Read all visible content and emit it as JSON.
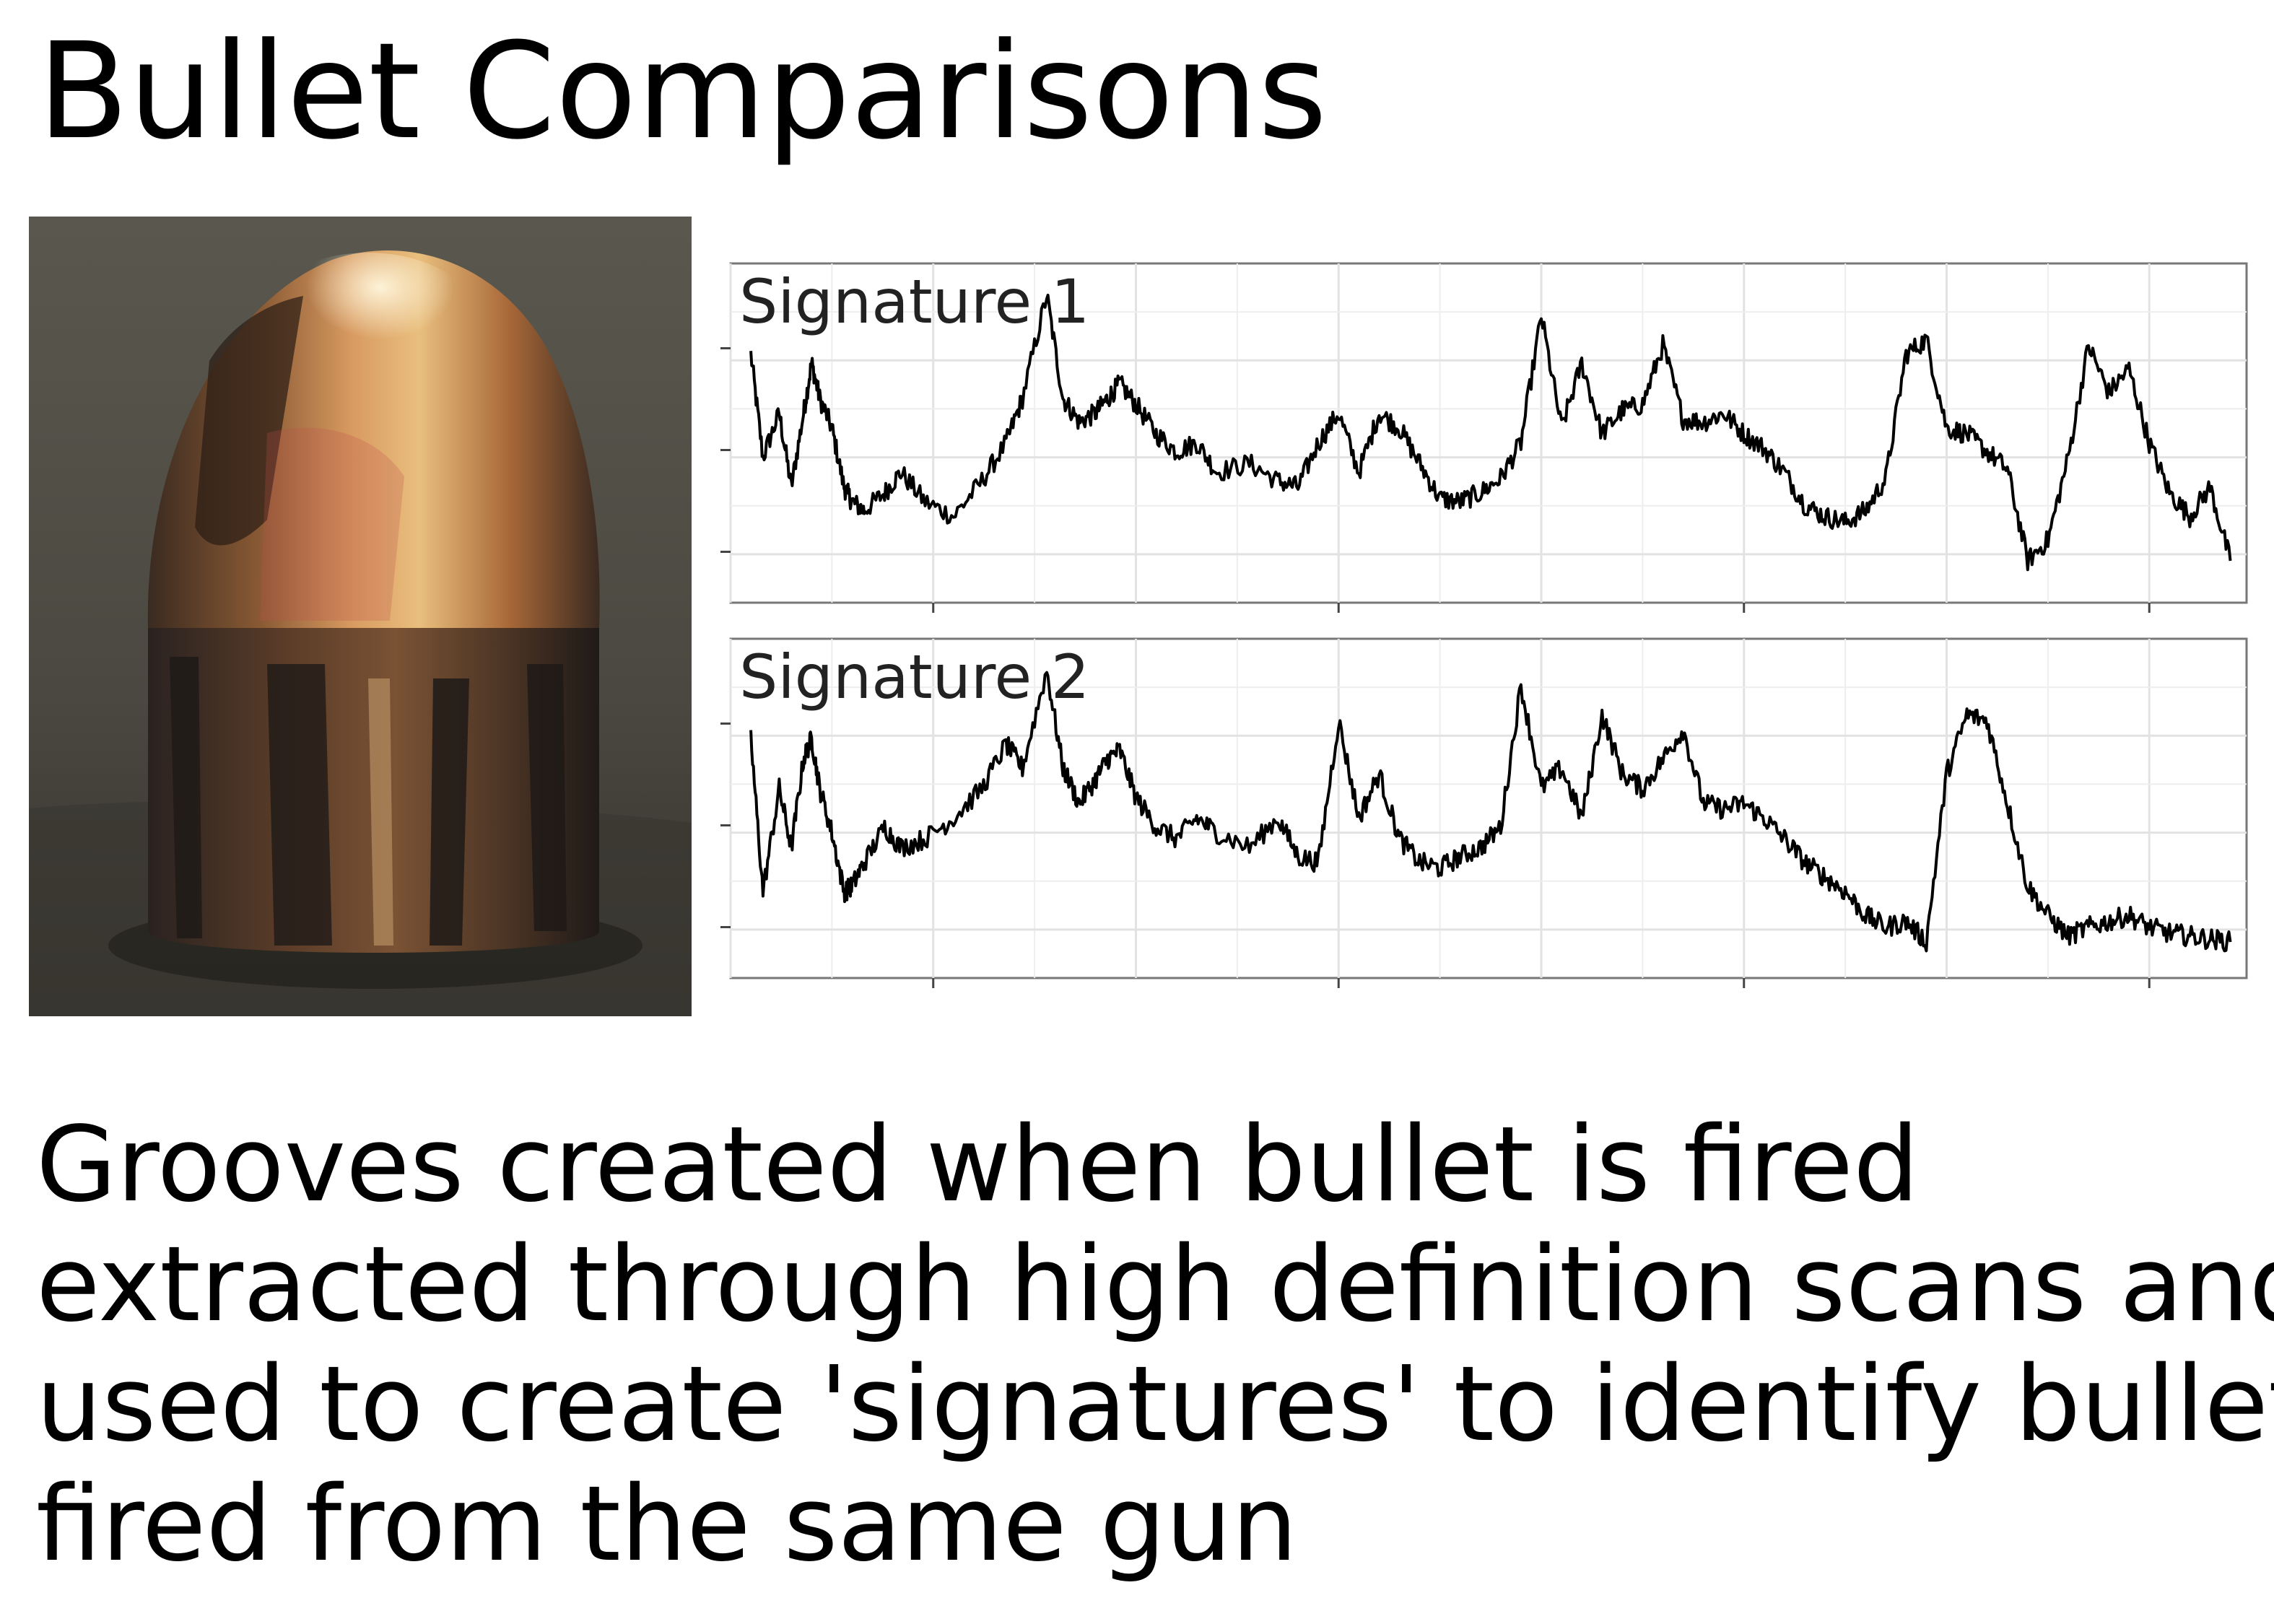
{
  "slide": {
    "title": "Bullet Comparisons"
  },
  "photo": {
    "subject": "copper-jacketed bullet with rifling grooves",
    "colors": {
      "background": "#4a4840",
      "copper_light": "#e9bf7e",
      "copper_mid": "#a86838",
      "copper_dark": "#3a2a20",
      "groove_dark": "#1f1a18"
    }
  },
  "chart_data": {
    "type": "line",
    "x_range": [
      0,
      3.74
    ],
    "y_range": [
      0,
      1
    ],
    "x_ticks": [
      0.5,
      1.5,
      2.5,
      3.5
    ],
    "tick_labels_shown": false,
    "grid": true,
    "line_color": "#000000",
    "panels": [
      {
        "label": "Signature 1",
        "series": [
          {
            "x": [
              0.05,
              0.08,
              0.12,
              0.15,
              0.18,
              0.2,
              0.22,
              0.25,
              0.28,
              0.3,
              0.33,
              0.38,
              0.42,
              0.48,
              0.55,
              0.62,
              0.68,
              0.72,
              0.78,
              0.82,
              0.86,
              0.9,
              0.93,
              0.96,
              1.0,
              1.05,
              1.1,
              1.15,
              1.2,
              1.28,
              1.35,
              1.4,
              1.45,
              1.5,
              1.55,
              1.6,
              1.65,
              1.7,
              1.75,
              1.8,
              1.85,
              1.9,
              1.95,
              2.0,
              2.05,
              2.1,
              2.15,
              2.2,
              2.25,
              2.3,
              2.35,
              2.4,
              2.45,
              2.5,
              2.55,
              2.6,
              2.65,
              2.7,
              2.75,
              2.8,
              2.85,
              2.9,
              2.95,
              3.0,
              3.05,
              3.1,
              3.15,
              3.2,
              3.25,
              3.3,
              3.35,
              3.4,
              3.45,
              3.5,
              3.55,
              3.6,
              3.65,
              3.7
            ],
            "y": [
              0.75,
              0.4,
              0.55,
              0.3,
              0.55,
              0.72,
              0.6,
              0.5,
              0.3,
              0.25,
              0.22,
              0.28,
              0.35,
              0.25,
              0.2,
              0.32,
              0.45,
              0.6,
              0.95,
              0.6,
              0.52,
              0.55,
              0.6,
              0.65,
              0.58,
              0.48,
              0.42,
              0.45,
              0.35,
              0.38,
              0.32,
              0.3,
              0.45,
              0.55,
              0.35,
              0.55,
              0.5,
              0.38,
              0.26,
              0.25,
              0.28,
              0.33,
              0.45,
              0.88,
              0.5,
              0.72,
              0.48,
              0.56,
              0.58,
              0.78,
              0.53,
              0.52,
              0.55,
              0.48,
              0.43,
              0.35,
              0.24,
              0.2,
              0.18,
              0.22,
              0.33,
              0.75,
              0.8,
              0.5,
              0.48,
              0.42,
              0.36,
              0.05,
              0.12,
              0.4,
              0.78,
              0.62,
              0.7,
              0.45,
              0.28,
              0.2,
              0.3,
              0.05
            ]
          }
        ]
      },
      {
        "label": "Signature 2",
        "series": [
          {
            "x": [
              0.05,
              0.08,
              0.12,
              0.15,
              0.18,
              0.2,
              0.22,
              0.25,
              0.28,
              0.3,
              0.33,
              0.38,
              0.42,
              0.48,
              0.55,
              0.62,
              0.68,
              0.72,
              0.78,
              0.82,
              0.86,
              0.9,
              0.93,
              0.96,
              1.0,
              1.05,
              1.1,
              1.15,
              1.2,
              1.28,
              1.35,
              1.4,
              1.45,
              1.5,
              1.55,
              1.6,
              1.65,
              1.7,
              1.75,
              1.8,
              1.85,
              1.9,
              1.95,
              2.0,
              2.05,
              2.1,
              2.15,
              2.2,
              2.25,
              2.3,
              2.35,
              2.4,
              2.45,
              2.5,
              2.55,
              2.6,
              2.65,
              2.7,
              2.75,
              2.8,
              2.85,
              2.9,
              2.95,
              3.0,
              3.05,
              3.1,
              3.15,
              3.2,
              3.25,
              3.3,
              3.35,
              3.4,
              3.45,
              3.5,
              3.55,
              3.6,
              3.65,
              3.7
            ],
            "y": [
              0.72,
              0.2,
              0.55,
              0.35,
              0.65,
              0.72,
              0.55,
              0.4,
              0.2,
              0.22,
              0.3,
              0.42,
              0.35,
              0.38,
              0.45,
              0.55,
              0.7,
              0.62,
              0.95,
              0.62,
              0.5,
              0.58,
              0.65,
              0.68,
              0.52,
              0.42,
              0.38,
              0.45,
              0.4,
              0.35,
              0.45,
              0.32,
              0.3,
              0.78,
              0.45,
              0.6,
              0.38,
              0.3,
              0.28,
              0.32,
              0.35,
              0.42,
              0.9,
              0.55,
              0.62,
              0.45,
              0.8,
              0.6,
              0.55,
              0.65,
              0.75,
              0.5,
              0.48,
              0.5,
              0.45,
              0.38,
              0.3,
              0.25,
              0.2,
              0.12,
              0.08,
              0.1,
              0.03,
              0.6,
              0.8,
              0.78,
              0.5,
              0.22,
              0.12,
              0.05,
              0.08,
              0.1,
              0.12,
              0.08,
              0.06,
              0.05,
              0.04,
              0.03
            ]
          }
        ]
      }
    ]
  },
  "body": {
    "lines": [
      "Grooves created when bullet is fired",
      "extracted through high definition scans and",
      "used to create 'signatures' to identify bullets",
      "fired from the same gun"
    ]
  }
}
